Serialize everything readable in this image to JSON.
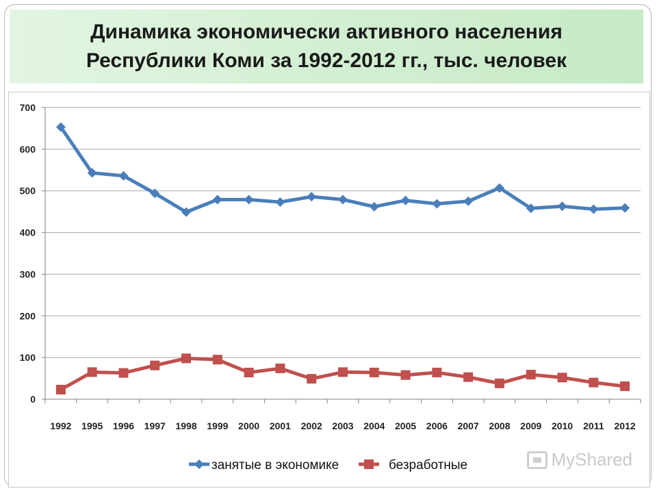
{
  "title": {
    "line1": "Динамика экономически активного населения",
    "line2": "Республики Коми за 1992-2012 гг., тыс. человек"
  },
  "watermark": {
    "text": "MyShared",
    "icon": "myshared-logo-icon"
  },
  "chart_data": {
    "type": "line",
    "title": "Динамика экономически активного населения Республики Коми за 1992-2012 гг., тыс. человек",
    "categories": [
      "1992",
      "1995",
      "1996",
      "1997",
      "1998",
      "1999",
      "2000",
      "2001",
      "2002",
      "2003",
      "2004",
      "2005",
      "2006",
      "2007",
      "2008",
      "2009",
      "2010",
      "2011",
      "2012"
    ],
    "ylim": [
      0,
      700
    ],
    "yticks": [
      0,
      100,
      200,
      300,
      400,
      500,
      600,
      700
    ],
    "grid": true,
    "legend_position": "bottom",
    "series": [
      {
        "name": "занятые в экономике",
        "color": "#4a7ebb",
        "marker": "diamond",
        "values": [
          653,
          543,
          536,
          494,
          449,
          479,
          479,
          473,
          486,
          479,
          462,
          477,
          469,
          475,
          507,
          458,
          463,
          456,
          459
        ]
      },
      {
        "name": "безработные",
        "color": "#c0504d",
        "marker": "square",
        "values": [
          23,
          65,
          63,
          81,
          98,
          95,
          64,
          74,
          49,
          65,
          64,
          58,
          64,
          53,
          38,
          59,
          52,
          40,
          31
        ]
      }
    ]
  }
}
